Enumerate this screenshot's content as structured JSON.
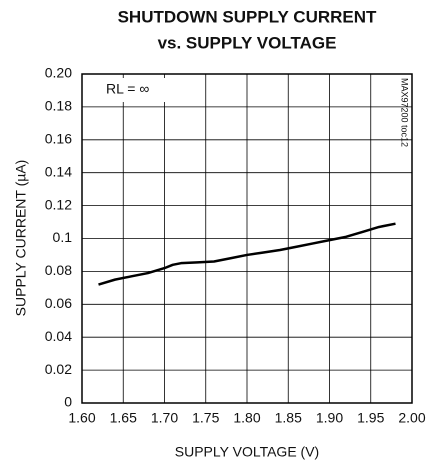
{
  "chart_data": {
    "type": "line",
    "title": [
      "SHUTDOWN SUPPLY CURRENT",
      "vs. SUPPLY VOLTAGE"
    ],
    "x_label": "SUPPLY VOLTAGE (V)",
    "y_label": "SUPPLY CURRENT (µA)",
    "annotations": [
      "RL = ∞",
      "MAX97200 toc12"
    ],
    "x": [
      1.62,
      1.64,
      1.66,
      1.68,
      1.7,
      1.71,
      1.72,
      1.74,
      1.76,
      1.78,
      1.8,
      1.82,
      1.84,
      1.86,
      1.88,
      1.9,
      1.92,
      1.94,
      1.96,
      1.98
    ],
    "series": [
      {
        "name": "RL = ∞",
        "color": "#000000",
        "values": [
          0.072,
          0.075,
          0.077,
          0.079,
          0.082,
          0.084,
          0.085,
          0.0855,
          0.086,
          0.088,
          0.09,
          0.0915,
          0.093,
          0.095,
          0.097,
          0.099,
          0.101,
          0.104,
          0.107,
          0.109
        ]
      }
    ],
    "xlim": [
      1.6,
      2.0
    ],
    "xticks": [
      {
        "value": 1.6,
        "label": "1.60"
      },
      1.65,
      {
        "value": 1.7,
        "label": "1.70"
      },
      1.75,
      {
        "value": 1.8,
        "label": "1.80"
      },
      1.85,
      {
        "value": 1.9,
        "label": "1.90"
      },
      1.95,
      {
        "value": 2.0,
        "label": "2.00"
      }
    ],
    "ylim": [
      0,
      0.2
    ],
    "yticks": [
      0,
      0.02,
      0.04,
      0.06,
      0.08,
      0.1,
      0.12,
      0.14,
      0.16,
      0.18,
      {
        "value": 0.2,
        "label": "0.20"
      }
    ],
    "grid": true
  }
}
